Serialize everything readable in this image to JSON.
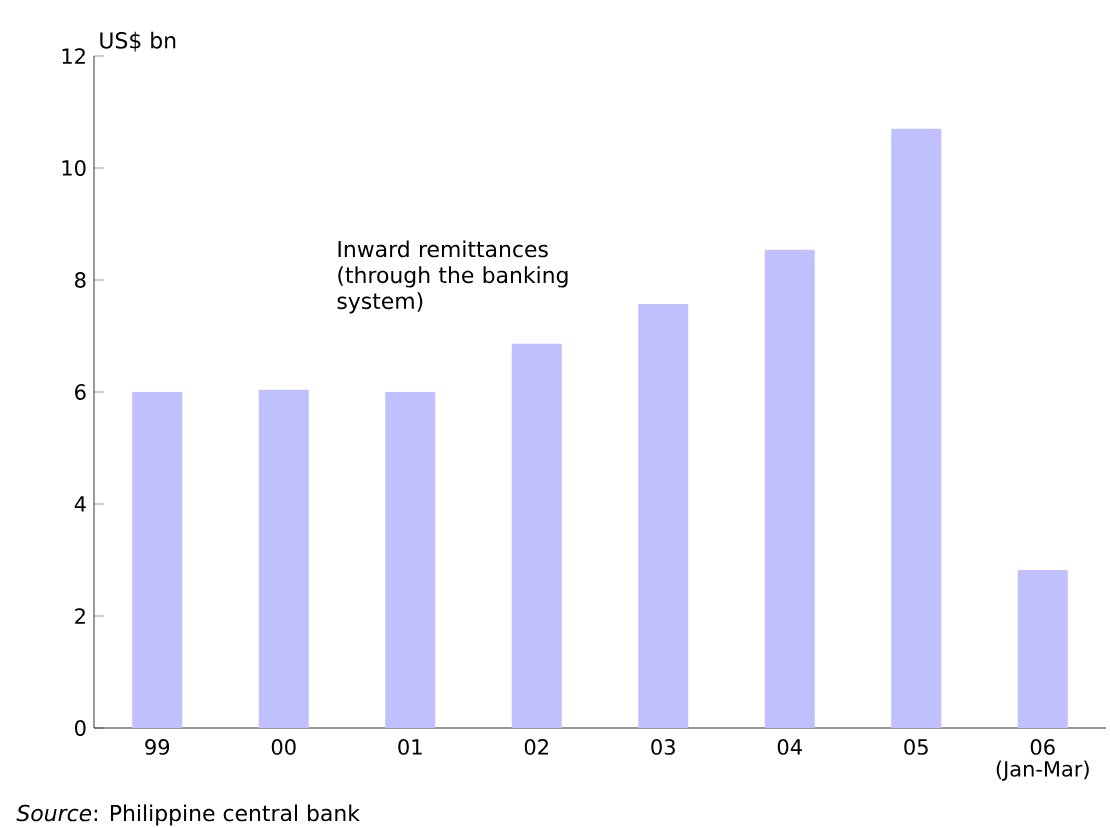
{
  "chart_data": {
    "type": "bar",
    "ylabel": "US$ bn",
    "categories": [
      "99",
      "00",
      "01",
      "02",
      "03",
      "04",
      "05",
      "06 (Jan-Mar)"
    ],
    "values": [
      6.0,
      6.04,
      6.0,
      6.86,
      7.57,
      8.54,
      10.7,
      2.82
    ],
    "color": "#c0c0ff",
    "ylim": [
      0,
      12
    ],
    "yticks": [
      0,
      2,
      4,
      6,
      8,
      10,
      12
    ],
    "grid": false,
    "annotations": [
      "Inward remittances (through the banking system)",
      "*Source*: Philippine central bank"
    ]
  }
}
